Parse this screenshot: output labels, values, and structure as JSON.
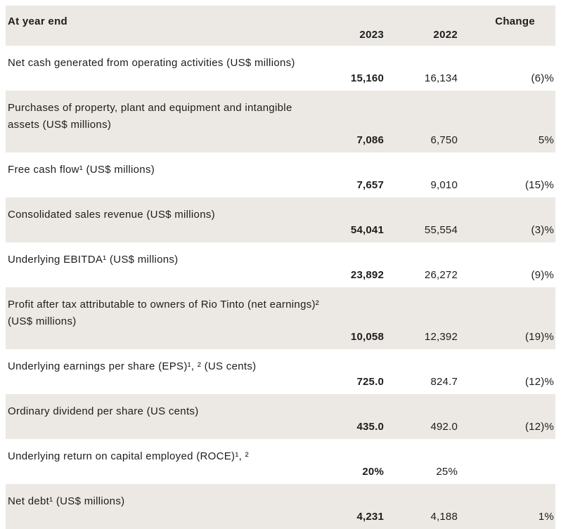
{
  "table": {
    "header": {
      "label": "At year end",
      "col_2023": "2023",
      "col_2022": "2022",
      "col_change": "Change"
    },
    "rows": [
      {
        "label": "Net cash generated from operating activities (US$ millions)",
        "y2023": "15,160",
        "y2022": "16,134",
        "change": "(6)%"
      },
      {
        "label": "Purchases of property, plant and equipment and intangible\nassets (US$ millions)",
        "y2023": "7,086",
        "y2022": "6,750",
        "change": "5%"
      },
      {
        "label": "Free cash flow¹ (US$ millions)",
        "y2023": "7,657",
        "y2022": "9,010",
        "change": "(15)%"
      },
      {
        "label": "Consolidated sales revenue (US$ millions)",
        "y2023": "54,041",
        "y2022": "55,554",
        "change": "(3)%"
      },
      {
        "label": "Underlying EBITDA¹ (US$ millions)",
        "y2023": "23,892",
        "y2022": "26,272",
        "change": "(9)%"
      },
      {
        "label": "Profit after tax attributable to owners of Rio Tinto (net earnings)²\n(US$ millions)",
        "y2023": "10,058",
        "y2022": "12,392",
        "change": "(19)%"
      },
      {
        "label": "Underlying earnings per share (EPS)¹, ² (US cents)",
        "y2023": "725.0",
        "y2022": "824.7",
        "change": "(12)%"
      },
      {
        "label": "Ordinary dividend per share (US cents)",
        "y2023": "435.0",
        "y2022": "492.0",
        "change": "(12)%"
      },
      {
        "label": "Underlying return on capital employed (ROCE)¹, ²",
        "y2023": "20%",
        "y2022": "25%",
        "change": ""
      },
      {
        "label": "Net debt¹ (US$ millions)",
        "y2023": "4,231",
        "y2022": "4,188",
        "change": "1%"
      }
    ],
    "colors": {
      "row_shade": "#ece8e3",
      "text": "#1d1d1b",
      "background": "#ffffff"
    }
  }
}
